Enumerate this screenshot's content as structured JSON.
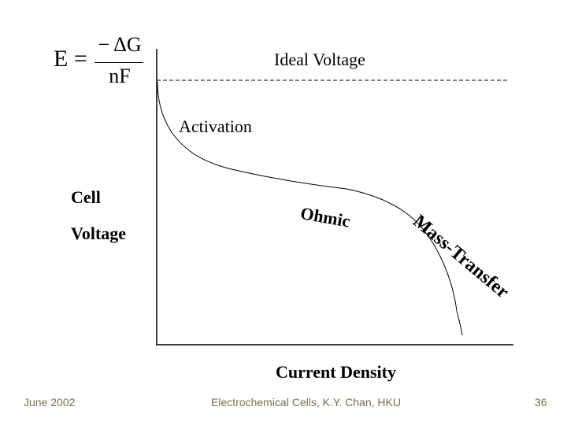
{
  "formula": {
    "lhs": "E =",
    "numerator": "− ΔG",
    "denominator": "nF"
  },
  "labels": {
    "ideal_voltage": "Ideal Voltage",
    "activation": "Activation",
    "ohmic": "Ohmic",
    "mass_transfer": "Mass-Transfer",
    "y_axis_line1": "Cell",
    "y_axis_line2": "Voltage",
    "x_axis": "Current Density"
  },
  "footer": {
    "date": "June 2002",
    "center": "Electrochemical Cells,   K.Y. Chan,   HKU",
    "page": "36"
  }
}
